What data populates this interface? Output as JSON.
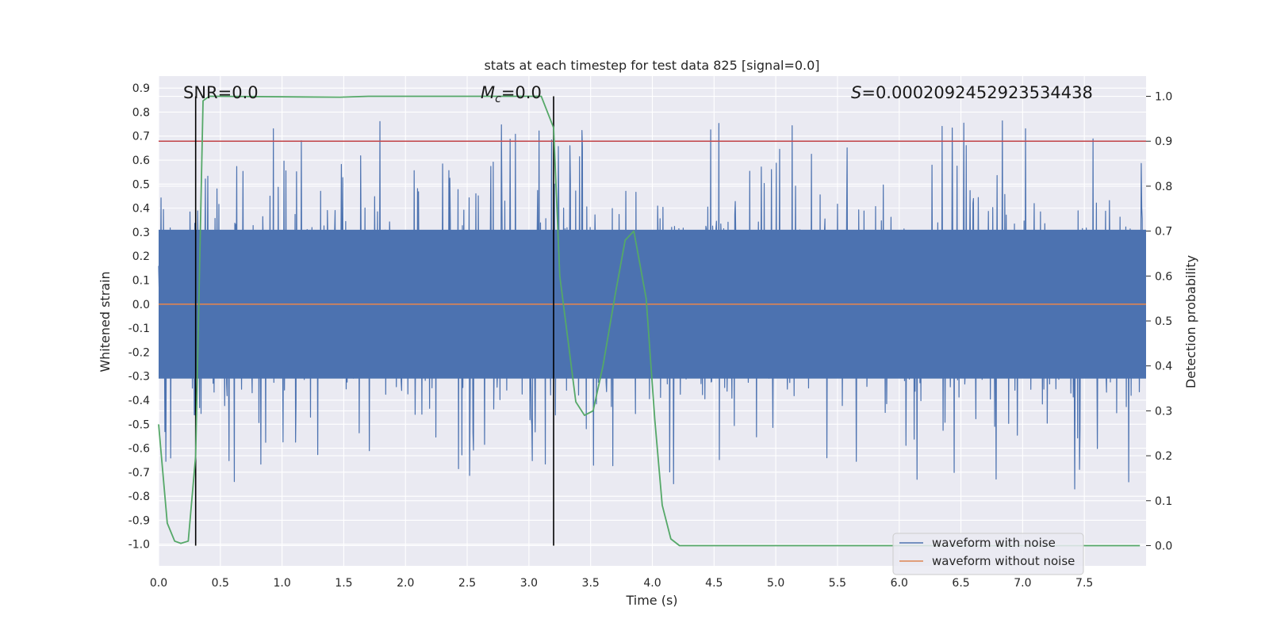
{
  "chart_data": {
    "type": "line",
    "title": "stats at each timestep for test data 825 [signal=0.0]",
    "xlabel": "Time (s)",
    "ylabel": "Whitened strain",
    "y2label": "Detection probability",
    "xlim": [
      0.0,
      8.0
    ],
    "ylim": [
      -1.09,
      0.95
    ],
    "y2lim": [
      -0.045,
      1.045
    ],
    "xticks": [
      "0.0",
      "0.5",
      "1.0",
      "1.5",
      "2.0",
      "2.5",
      "3.0",
      "3.5",
      "4.0",
      "4.5",
      "5.0",
      "5.5",
      "6.0",
      "6.5",
      "7.0",
      "7.5"
    ],
    "yticks": [
      "0.9",
      "0.8",
      "0.7",
      "0.6",
      "0.5",
      "0.4",
      "0.3",
      "0.2",
      "0.1",
      "0.0",
      "-0.1",
      "-0.2",
      "-0.3",
      "-0.4",
      "-0.5",
      "-0.6",
      "-0.7",
      "-0.8",
      "-0.9",
      "-1.0"
    ],
    "y2ticks": [
      "1.0",
      "0.9",
      "0.8",
      "0.7",
      "0.6",
      "0.5",
      "0.4",
      "0.3",
      "0.2",
      "0.1",
      "0.0"
    ],
    "annotations": {
      "snr": "SNR=0.0",
      "mc_symbol": "M",
      "mc_sub": "c",
      "mc_value": "=0.0",
      "s_symbol": "S",
      "s_value": "=0.0002092452923534438"
    },
    "legend": {
      "location": "lower right",
      "entries": [
        "waveform with noise",
        "waveform without noise"
      ]
    },
    "colors": {
      "noise": "#4c72b0",
      "clean": "#dd8452",
      "prob": "#55a868",
      "threshold": "#c44e52",
      "markers": "#000000",
      "background": "#eaeaf2",
      "grid": "#ffffff"
    },
    "series": [
      {
        "name": "waveform with noise",
        "kind": "noise",
        "n": 2048,
        "envelope_core": 0.31,
        "max_peak": 0.87,
        "min_trough": -1.0
      },
      {
        "name": "waveform without noise",
        "values_constant": 0.0
      }
    ],
    "threshold": {
      "axis": "right",
      "value": 0.9
    },
    "vertical_markers": [
      0.3,
      3.2
    ],
    "detection_probability": {
      "x": [
        0.0,
        0.07,
        0.13,
        0.18,
        0.24,
        0.3,
        0.36,
        0.41,
        0.47,
        1.47,
        1.7,
        3.1,
        3.2,
        3.25,
        3.32,
        3.38,
        3.45,
        3.52,
        3.6,
        3.7,
        3.78,
        3.85,
        3.95,
        4.02,
        4.08,
        4.15,
        4.22,
        4.3,
        7.95
      ],
      "y": [
        0.27,
        0.05,
        0.01,
        0.005,
        0.01,
        0.2,
        0.99,
        1.0,
        1.0,
        0.998,
        1.0,
        1.0,
        0.93,
        0.6,
        0.45,
        0.32,
        0.29,
        0.3,
        0.4,
        0.56,
        0.68,
        0.7,
        0.55,
        0.28,
        0.09,
        0.015,
        0.0,
        0.0,
        0.0
      ]
    }
  }
}
